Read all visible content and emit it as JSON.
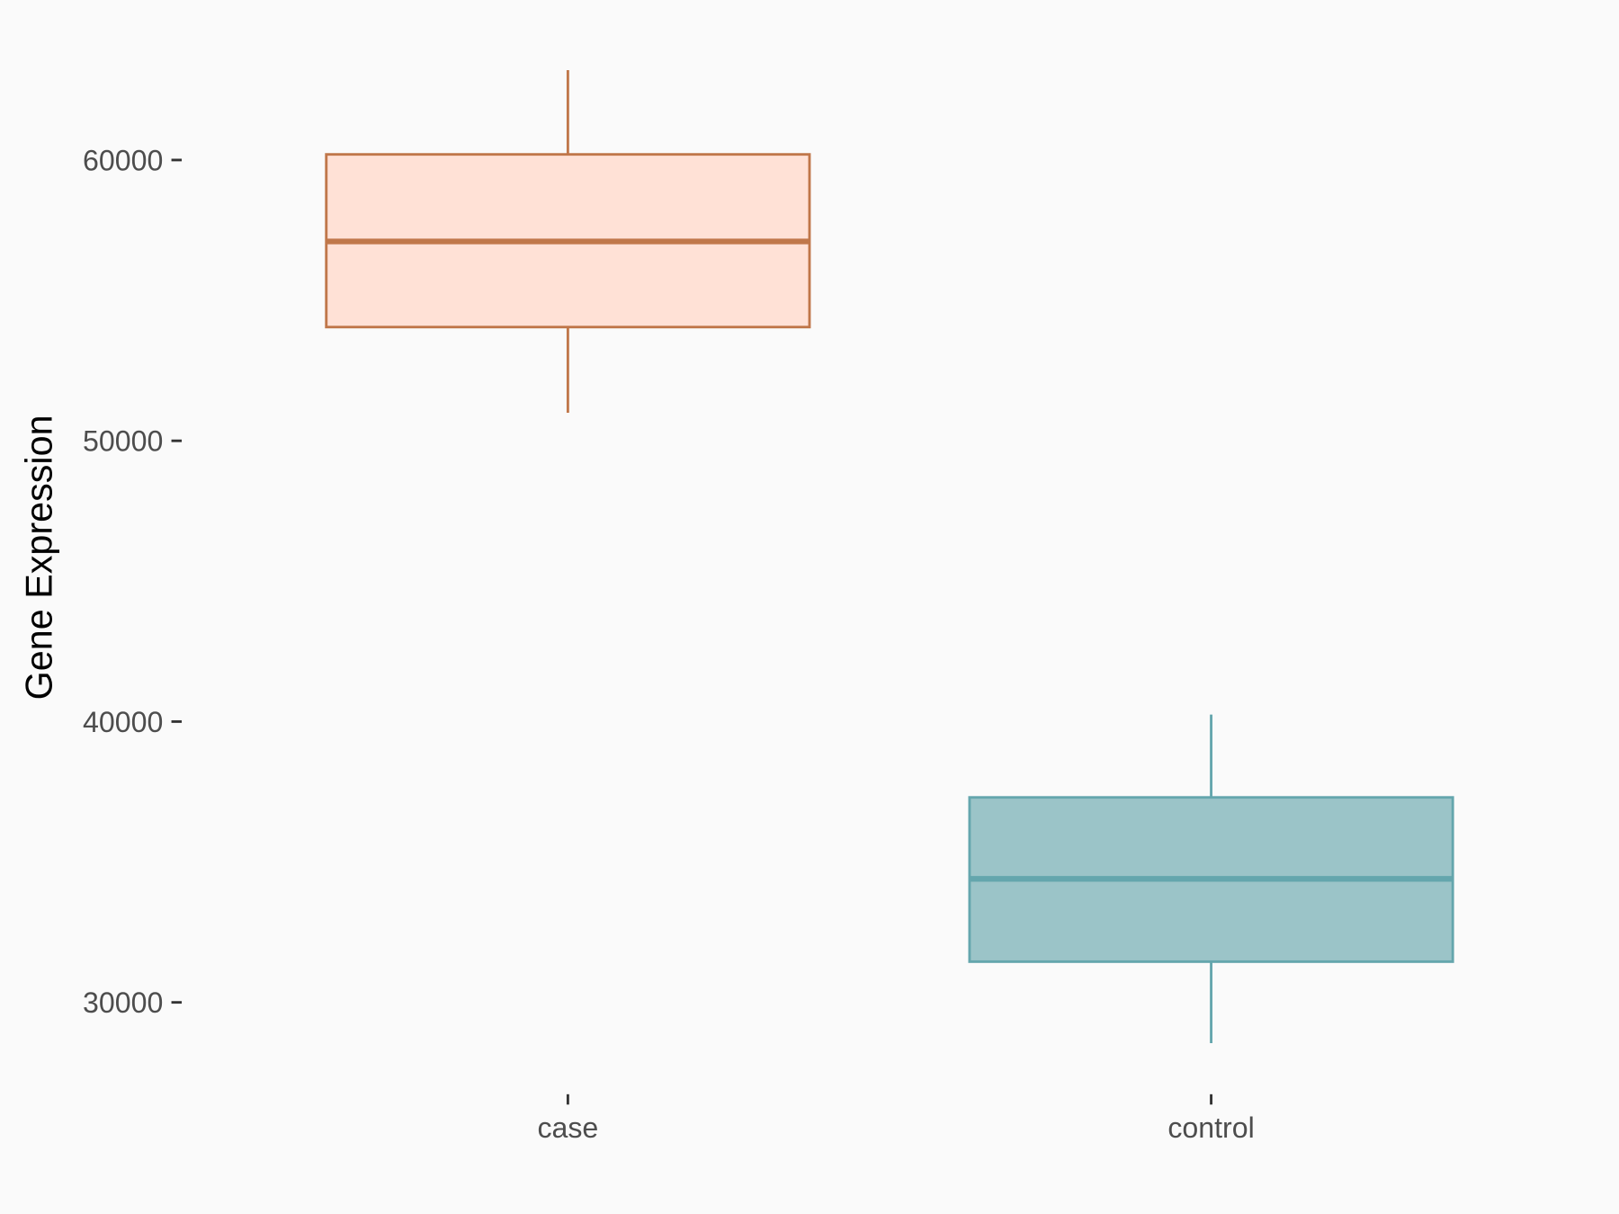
{
  "chart_data": {
    "type": "boxplot",
    "title": "",
    "xlabel": "",
    "ylabel": "Gene Expression",
    "ylim": [
      26500,
      64500
    ],
    "yticks": [
      30000,
      40000,
      50000,
      60000
    ],
    "ytick_labels": [
      "30000",
      "40000",
      "50000",
      "60000"
    ],
    "grid": false,
    "categories": [
      "case",
      "control"
    ],
    "boxes": [
      {
        "category": "case",
        "whisker_low": 51000,
        "q1": 54050,
        "median": 57100,
        "q3": 60200,
        "whisker_high": 63200,
        "fill": "#ffe1d6",
        "stroke": "#c0774a"
      },
      {
        "category": "control",
        "whisker_low": 28550,
        "q1": 31450,
        "median": 34400,
        "q3": 37300,
        "whisker_high": 40250,
        "fill": "#9bc4c8",
        "stroke": "#64a6ad"
      }
    ]
  }
}
